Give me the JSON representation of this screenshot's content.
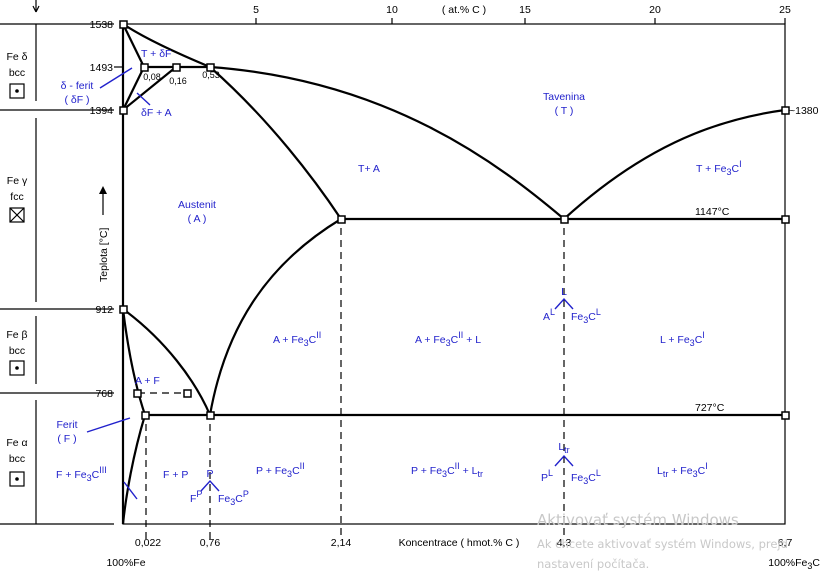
{
  "top_axis": {
    "ticks": [
      "5",
      "10",
      "15",
      "20",
      "25"
    ],
    "unit": "( at.% C )"
  },
  "bottom_axis": {
    "ticks": [
      "0,022",
      "0,76",
      "2,14",
      "4,3",
      "6,7"
    ],
    "label": "Koncentrace ( hmot.% C )",
    "left_end": "100%Fe",
    "right_end": "100%Fe",
    "right_end_sub": "3",
    "right_end_suffix": "C"
  },
  "temperatures": [
    "1538",
    "1493",
    "1394",
    "912",
    "768"
  ],
  "right_temps": {
    "t1380": "~1380",
    "t1147": "1147°C",
    "t727": "727°C"
  },
  "y_axis_label": "Teplota [°C]",
  "phases_left": [
    {
      "name": "Fe δ",
      "lattice": "bcc"
    },
    {
      "name": "Fe γ",
      "lattice": "fcc"
    },
    {
      "name": "Fe β",
      "lattice": "bcc"
    },
    {
      "name": "Fe α",
      "lattice": "bcc"
    }
  ],
  "peritectic_values": [
    "0,08",
    "0,16",
    "0,53"
  ],
  "regions": {
    "t_df": "T + δF",
    "df_a": "δF + A",
    "delta_ferit_1": "δ - ferit",
    "delta_ferit_2": "( δF )",
    "tavenina_1": "Tavenina",
    "tavenina_2": "( T )",
    "t_a": "T+ A",
    "austenit_1": "Austenit",
    "austenit_2": "( A )",
    "a_f": "A + F",
    "ferit_1": "Ferit",
    "ferit_2": "( F )",
    "f_p": "F + P",
    "p": "P",
    "fp": "F",
    "fp_sup": "P",
    "l": "L",
    "al": "A",
    "al_sup": "L",
    "ltr": "L",
    "ltr_sub": "tr",
    "pl": "P",
    "pl_sup": "L",
    "fe3": "Fe",
    "sub3": "3",
    "c": "C",
    "sup_i": "I",
    "sup_ii": "II",
    "sup_iii": "III",
    "sup_p": "P",
    "sup_l": "L",
    "t_fe3c": "T + Fe",
    "a_fe3c": "A + Fe",
    "a_fe3c_l": "A + Fe",
    "a_fe3c_l_end": " + L",
    "l_fe3c": "L + Fe",
    "f_fe3c": "F + Fe",
    "p_fe3c": "P + Fe",
    "p_fe3c_l": "P + Fe",
    "p_fe3c_l_end": " + L",
    "ltr_fe3c": " + Fe"
  },
  "watermark": {
    "line1": "Aktivovať systém Windows",
    "line2": "Ak chcete aktivovať systém Windows, prejd",
    "line3": "nastavení počítača."
  }
}
